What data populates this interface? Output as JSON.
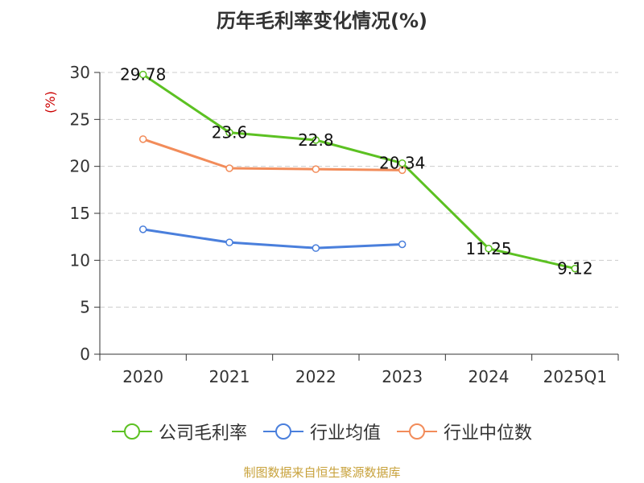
{
  "chart_data": {
    "type": "line",
    "title": "历年毛利率变化情况(%)",
    "ylabel": "(%)",
    "xlabel": "",
    "categories": [
      "2020",
      "2021",
      "2022",
      "2023",
      "2024",
      "2025Q1"
    ],
    "ylim": [
      0,
      30
    ],
    "yticks": [
      0,
      5,
      10,
      15,
      20,
      25,
      30
    ],
    "grid": true,
    "legend_position": "bottom",
    "series": [
      {
        "name": "公司毛利率",
        "color": "#5cc122",
        "values": [
          29.78,
          23.6,
          22.8,
          20.34,
          11.25,
          9.12
        ],
        "show_labels": true
      },
      {
        "name": "行业均值",
        "color": "#4a7fdc",
        "values": [
          13.3,
          11.9,
          11.3,
          11.7,
          null,
          null
        ],
        "show_labels": false
      },
      {
        "name": "行业中位数",
        "color": "#f28c5a",
        "values": [
          22.9,
          19.8,
          19.7,
          19.6,
          null,
          null
        ],
        "show_labels": false
      }
    ],
    "data_labels": [
      "29.78",
      "23.6",
      "22.8",
      "20.34",
      "11.25",
      "9.12"
    ]
  },
  "footer": {
    "source": "制图数据来自恒生聚源数据库"
  },
  "colors": {
    "axis": "#333333",
    "grid": "#cccccc",
    "ylabel": "#cc0000",
    "source": "#c8a23c"
  }
}
